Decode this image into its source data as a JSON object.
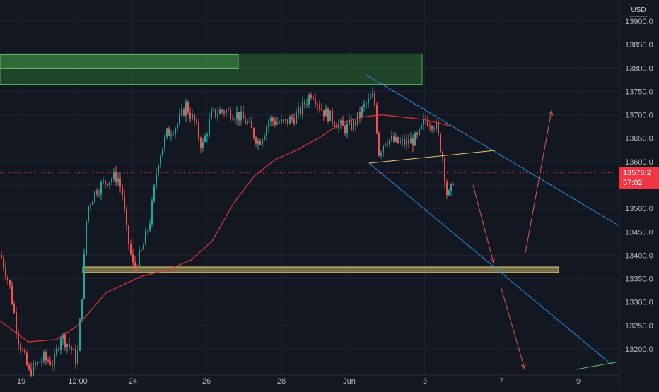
{
  "chart_data": {
    "type": "candlestick",
    "symbol_currency": "USD",
    "current_price": "13576.2",
    "countdown": "57:02",
    "ylim": [
      13140,
      13930
    ],
    "y_ticks": [
      "13900.0",
      "13850.0",
      "13800.0",
      "13750.0",
      "13700.0",
      "13650.0",
      "13600.0",
      "13550.0",
      "13500.0",
      "13450.0",
      "13400.0",
      "13350.0",
      "13300.0",
      "13250.0",
      "13200.0"
    ],
    "x_ticks": [
      "19",
      "12:00",
      "24",
      "26",
      "28",
      "Jun",
      "3",
      "7",
      "9"
    ],
    "grid": true,
    "series": [
      {
        "kind": "ohlc_approx",
        "start_value": 13390,
        "end_value": 13576.2
      },
      {
        "kind": "moving_average",
        "color": "#e03535",
        "values": [
          13260,
          13240,
          13215,
          13230,
          13270,
          13340,
          13360,
          13380,
          13420,
          13500,
          13560,
          13600,
          13625,
          13650,
          13680,
          13695,
          13700,
          13690,
          13670
        ]
      }
    ],
    "zones": [
      {
        "kind": "supply",
        "from": 13765,
        "to": 13830,
        "color": "#2e7d32"
      },
      {
        "kind": "demand",
        "from": 13363,
        "to": 13375,
        "color": "#c8b560"
      }
    ],
    "colors": {
      "up": "#26a69a",
      "down": "#ef5350",
      "channel": "#2196f3",
      "arrow": "#e05a4f",
      "trendline": "#e6c86a"
    }
  }
}
